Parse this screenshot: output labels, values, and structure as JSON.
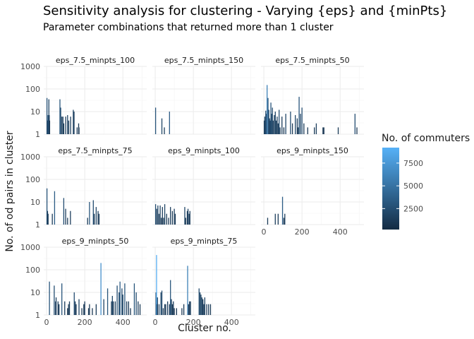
{
  "chart_data": {
    "type": "bar",
    "title": "Sensitivity analysis for clustering - Varying {eps} and {minPts}",
    "subtitle": "Parameter combinations that returned more than 1 cluster",
    "xlabel": "Cluster no.",
    "ylabel": "No. of od pairs in cluster",
    "xlim": [
      -15,
      525
    ],
    "ylim": [
      1,
      1000
    ],
    "y_scale": "log10",
    "x_ticks": [
      0,
      200,
      400
    ],
    "y_ticks": [
      1,
      10,
      100,
      1000
    ],
    "y_tick_labels": [
      "1",
      "10",
      "100",
      "1000"
    ],
    "grid": true,
    "fill_legend": {
      "title": "No. of commuters",
      "placement": "right",
      "range": [
        200,
        9200
      ],
      "ticks": [
        2500,
        5000,
        7500
      ],
      "low_color": "#132B43",
      "high_color": "#56B1F7"
    },
    "panels": [
      {
        "name": "eps_7.5_minpts_100",
        "bars": [
          [
            2,
            40,
            3000
          ],
          [
            4,
            4,
            1500
          ],
          [
            6,
            4,
            2000
          ],
          [
            8,
            7,
            2500
          ],
          [
            10,
            7,
            3000
          ],
          [
            12,
            35,
            2000
          ],
          [
            14,
            7,
            1500
          ],
          [
            16,
            4,
            1000
          ],
          [
            70,
            35,
            3000
          ],
          [
            74,
            15,
            2500
          ],
          [
            80,
            6,
            1500
          ],
          [
            86,
            6,
            1800
          ],
          [
            90,
            3,
            1200
          ],
          [
            100,
            6,
            1500
          ],
          [
            110,
            7,
            1800
          ],
          [
            116,
            4,
            1200
          ],
          [
            126,
            6,
            1500
          ],
          [
            140,
            12,
            2000
          ],
          [
            144,
            10,
            1500
          ],
          [
            160,
            2,
            1200
          ],
          [
            168,
            3,
            1000
          ],
          [
            170,
            2,
            900
          ]
        ]
      },
      {
        "name": "eps_7.5_minpts_150",
        "bars": [
          [
            2,
            15,
            3000
          ],
          [
            35,
            5,
            2000
          ],
          [
            48,
            2,
            1500
          ],
          [
            75,
            10,
            3500
          ]
        ]
      },
      {
        "name": "eps_7.5_minpts_50",
        "bars": [
          [
            2,
            4,
            1500
          ],
          [
            5,
            6,
            2000
          ],
          [
            8,
            4,
            1800
          ],
          [
            10,
            11,
            2500
          ],
          [
            14,
            8,
            2000
          ],
          [
            17,
            150,
            6000
          ],
          [
            22,
            40,
            3000
          ],
          [
            26,
            12,
            2500
          ],
          [
            30,
            5,
            2000
          ],
          [
            33,
            4,
            1500
          ],
          [
            37,
            25,
            3000
          ],
          [
            40,
            8,
            2000
          ],
          [
            45,
            15,
            2500
          ],
          [
            49,
            4,
            1500
          ],
          [
            55,
            7,
            1800
          ],
          [
            60,
            10,
            2000
          ],
          [
            65,
            4,
            1500
          ],
          [
            70,
            6,
            1800
          ],
          [
            75,
            3,
            1200
          ],
          [
            80,
            12,
            2500
          ],
          [
            85,
            2,
            1200
          ],
          [
            95,
            6,
            1500
          ],
          [
            105,
            2,
            1000
          ],
          [
            115,
            8,
            2000
          ],
          [
            140,
            10,
            2500
          ],
          [
            150,
            3,
            1200
          ],
          [
            165,
            7,
            2000
          ],
          [
            175,
            5,
            1500
          ],
          [
            180,
            2,
            1000
          ],
          [
            185,
            45,
            3000
          ],
          [
            192,
            8,
            2000
          ],
          [
            200,
            15,
            2500
          ],
          [
            210,
            3,
            1200
          ],
          [
            230,
            2,
            1000
          ],
          [
            265,
            2,
            1200
          ],
          [
            275,
            3,
            1500
          ],
          [
            310,
            2,
            1000
          ],
          [
            315,
            2,
            1000
          ],
          [
            390,
            2,
            1200
          ],
          [
            478,
            8,
            2500
          ],
          [
            488,
            2,
            1000
          ]
        ]
      },
      {
        "name": "eps_7.5_minpts_75",
        "bars": [
          [
            2,
            40,
            3000
          ],
          [
            5,
            4,
            1500
          ],
          [
            8,
            3,
            1200
          ],
          [
            30,
            3,
            1500
          ],
          [
            42,
            30,
            3500
          ],
          [
            90,
            15,
            2500
          ],
          [
            100,
            5,
            1500
          ],
          [
            110,
            2,
            1200
          ],
          [
            125,
            4,
            1500
          ],
          [
            215,
            2,
            1200
          ],
          [
            225,
            10,
            3000
          ],
          [
            245,
            12,
            2500
          ],
          [
            250,
            3,
            1500
          ],
          [
            260,
            6,
            2000
          ],
          [
            270,
            4,
            1500
          ],
          [
            275,
            3,
            1200
          ]
        ]
      },
      {
        "name": "eps_9_minpts_100",
        "bars": [
          [
            2,
            8,
            2500
          ],
          [
            8,
            5,
            1500
          ],
          [
            14,
            7,
            2000
          ],
          [
            20,
            3,
            1200
          ],
          [
            26,
            7,
            1800
          ],
          [
            32,
            2,
            1000
          ],
          [
            38,
            6,
            1500
          ],
          [
            44,
            2,
            1000
          ],
          [
            50,
            8,
            2000
          ],
          [
            60,
            3,
            1200
          ],
          [
            70,
            2,
            1000
          ],
          [
            80,
            6,
            1500
          ],
          [
            90,
            4,
            1200
          ],
          [
            100,
            5,
            1500
          ],
          [
            105,
            3,
            1200
          ],
          [
            155,
            6,
            2000
          ],
          [
            160,
            2,
            1000
          ],
          [
            168,
            4,
            1500
          ],
          [
            172,
            5,
            1800
          ],
          [
            178,
            3,
            1200
          ],
          [
            182,
            4,
            1500
          ]
        ]
      },
      {
        "name": "eps_9_minpts_150",
        "bars": [
          [
            20,
            2,
            1200
          ],
          [
            60,
            3,
            1500
          ],
          [
            75,
            3,
            1200
          ],
          [
            98,
            17,
            3500
          ],
          [
            105,
            2,
            1000
          ],
          [
            110,
            3,
            1500
          ]
        ]
      },
      {
        "name": "eps_9_minpts_50",
        "bars": [
          [
            15,
            30,
            3000
          ],
          [
            40,
            20,
            2500
          ],
          [
            47,
            4,
            1500
          ],
          [
            50,
            6,
            1800
          ],
          [
            60,
            4,
            1500
          ],
          [
            65,
            3,
            1200
          ],
          [
            80,
            25,
            3000
          ],
          [
            95,
            4,
            1500
          ],
          [
            110,
            2,
            1000
          ],
          [
            115,
            3,
            1200
          ],
          [
            120,
            4,
            1500
          ],
          [
            145,
            10,
            2500
          ],
          [
            150,
            4,
            1500
          ],
          [
            155,
            3,
            1200
          ],
          [
            170,
            5,
            1800
          ],
          [
            185,
            2,
            1000
          ],
          [
            195,
            3,
            1200
          ],
          [
            200,
            4,
            1500
          ],
          [
            220,
            2,
            1000
          ],
          [
            225,
            3,
            1200
          ],
          [
            240,
            2,
            1000
          ],
          [
            260,
            3,
            1200
          ],
          [
            285,
            200,
            7000
          ],
          [
            300,
            5,
            1800
          ],
          [
            320,
            15,
            3000
          ],
          [
            340,
            4,
            1500
          ],
          [
            345,
            7,
            2000
          ],
          [
            350,
            4,
            1500
          ],
          [
            360,
            4,
            1500
          ],
          [
            370,
            20,
            2500
          ],
          [
            380,
            10,
            2000
          ],
          [
            385,
            30,
            3500
          ],
          [
            395,
            15,
            2500
          ],
          [
            400,
            8,
            2000
          ],
          [
            410,
            25,
            3000
          ],
          [
            420,
            4,
            1500
          ],
          [
            430,
            4,
            1200
          ],
          [
            440,
            2,
            1000
          ],
          [
            460,
            25,
            3000
          ],
          [
            470,
            10,
            2500
          ],
          [
            480,
            4,
            1500
          ],
          [
            490,
            3,
            1200
          ]
        ]
      },
      {
        "name": "eps_9_minpts_75",
        "bars": [
          [
            4,
            10,
            2500
          ],
          [
            7,
            450,
            9000
          ],
          [
            10,
            3,
            1200
          ],
          [
            12,
            6,
            1800
          ],
          [
            20,
            3,
            1500
          ],
          [
            30,
            10,
            2000
          ],
          [
            35,
            12,
            2500
          ],
          [
            42,
            2,
            1000
          ],
          [
            50,
            3,
            1200
          ],
          [
            55,
            3,
            1200
          ],
          [
            65,
            4,
            1500
          ],
          [
            75,
            3,
            1500
          ],
          [
            80,
            35,
            3000
          ],
          [
            85,
            5,
            1800
          ],
          [
            90,
            3,
            1200
          ],
          [
            95,
            4,
            1500
          ],
          [
            100,
            2,
            1000
          ],
          [
            112,
            2,
            1000
          ],
          [
            140,
            2,
            1000
          ],
          [
            150,
            3,
            1200
          ],
          [
            170,
            150,
            6000
          ],
          [
            175,
            3,
            1200
          ],
          [
            180,
            4,
            1500
          ],
          [
            185,
            4,
            1500
          ],
          [
            230,
            15,
            2500
          ],
          [
            235,
            10,
            2000
          ],
          [
            240,
            8,
            2000
          ],
          [
            245,
            6,
            1800
          ],
          [
            250,
            5,
            1500
          ],
          [
            255,
            3,
            1200
          ],
          [
            260,
            6,
            1800
          ],
          [
            270,
            3,
            1200
          ],
          [
            280,
            3,
            1200
          ],
          [
            290,
            3,
            1200
          ]
        ]
      }
    ]
  }
}
